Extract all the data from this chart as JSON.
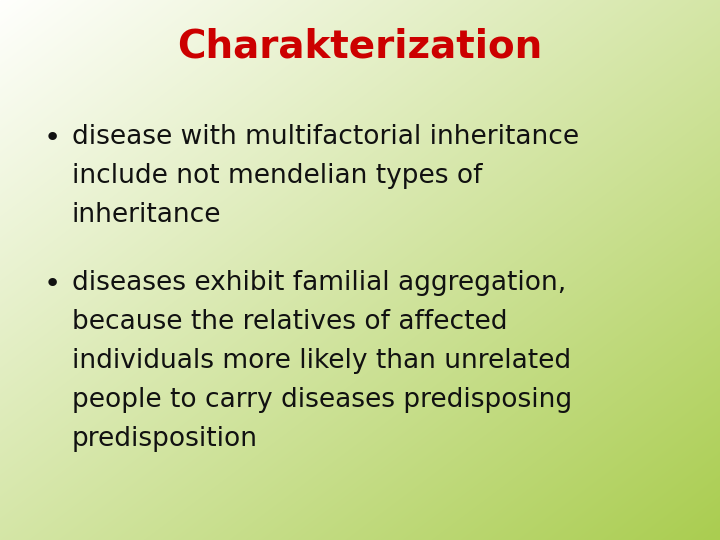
{
  "title": "Charakterization",
  "title_color": "#cc0000",
  "title_fontsize": 28,
  "title_font": "Comic Sans MS",
  "bullet1_line1": "disease with multifactorial inheritance",
  "bullet1_line2": "include not mendelian types of",
  "bullet1_line3": "inheritance",
  "bullet2_line1": "diseases exhibit familial aggregation,",
  "bullet2_line2": "because the relatives of affected",
  "bullet2_line3": "individuals more likely than unrelated",
  "bullet2_line4": "people to carry diseases predisposing",
  "bullet2_line5": "predisposition",
  "bullet_color": "#111111",
  "bullet_fontsize": 19,
  "bullet_font": "Comic Sans MS",
  "bg_tl": [
    255,
    255,
    253
  ],
  "bg_br": [
    170,
    205,
    80
  ],
  "figure_width": 7.2,
  "figure_height": 5.4,
  "dpi": 100
}
